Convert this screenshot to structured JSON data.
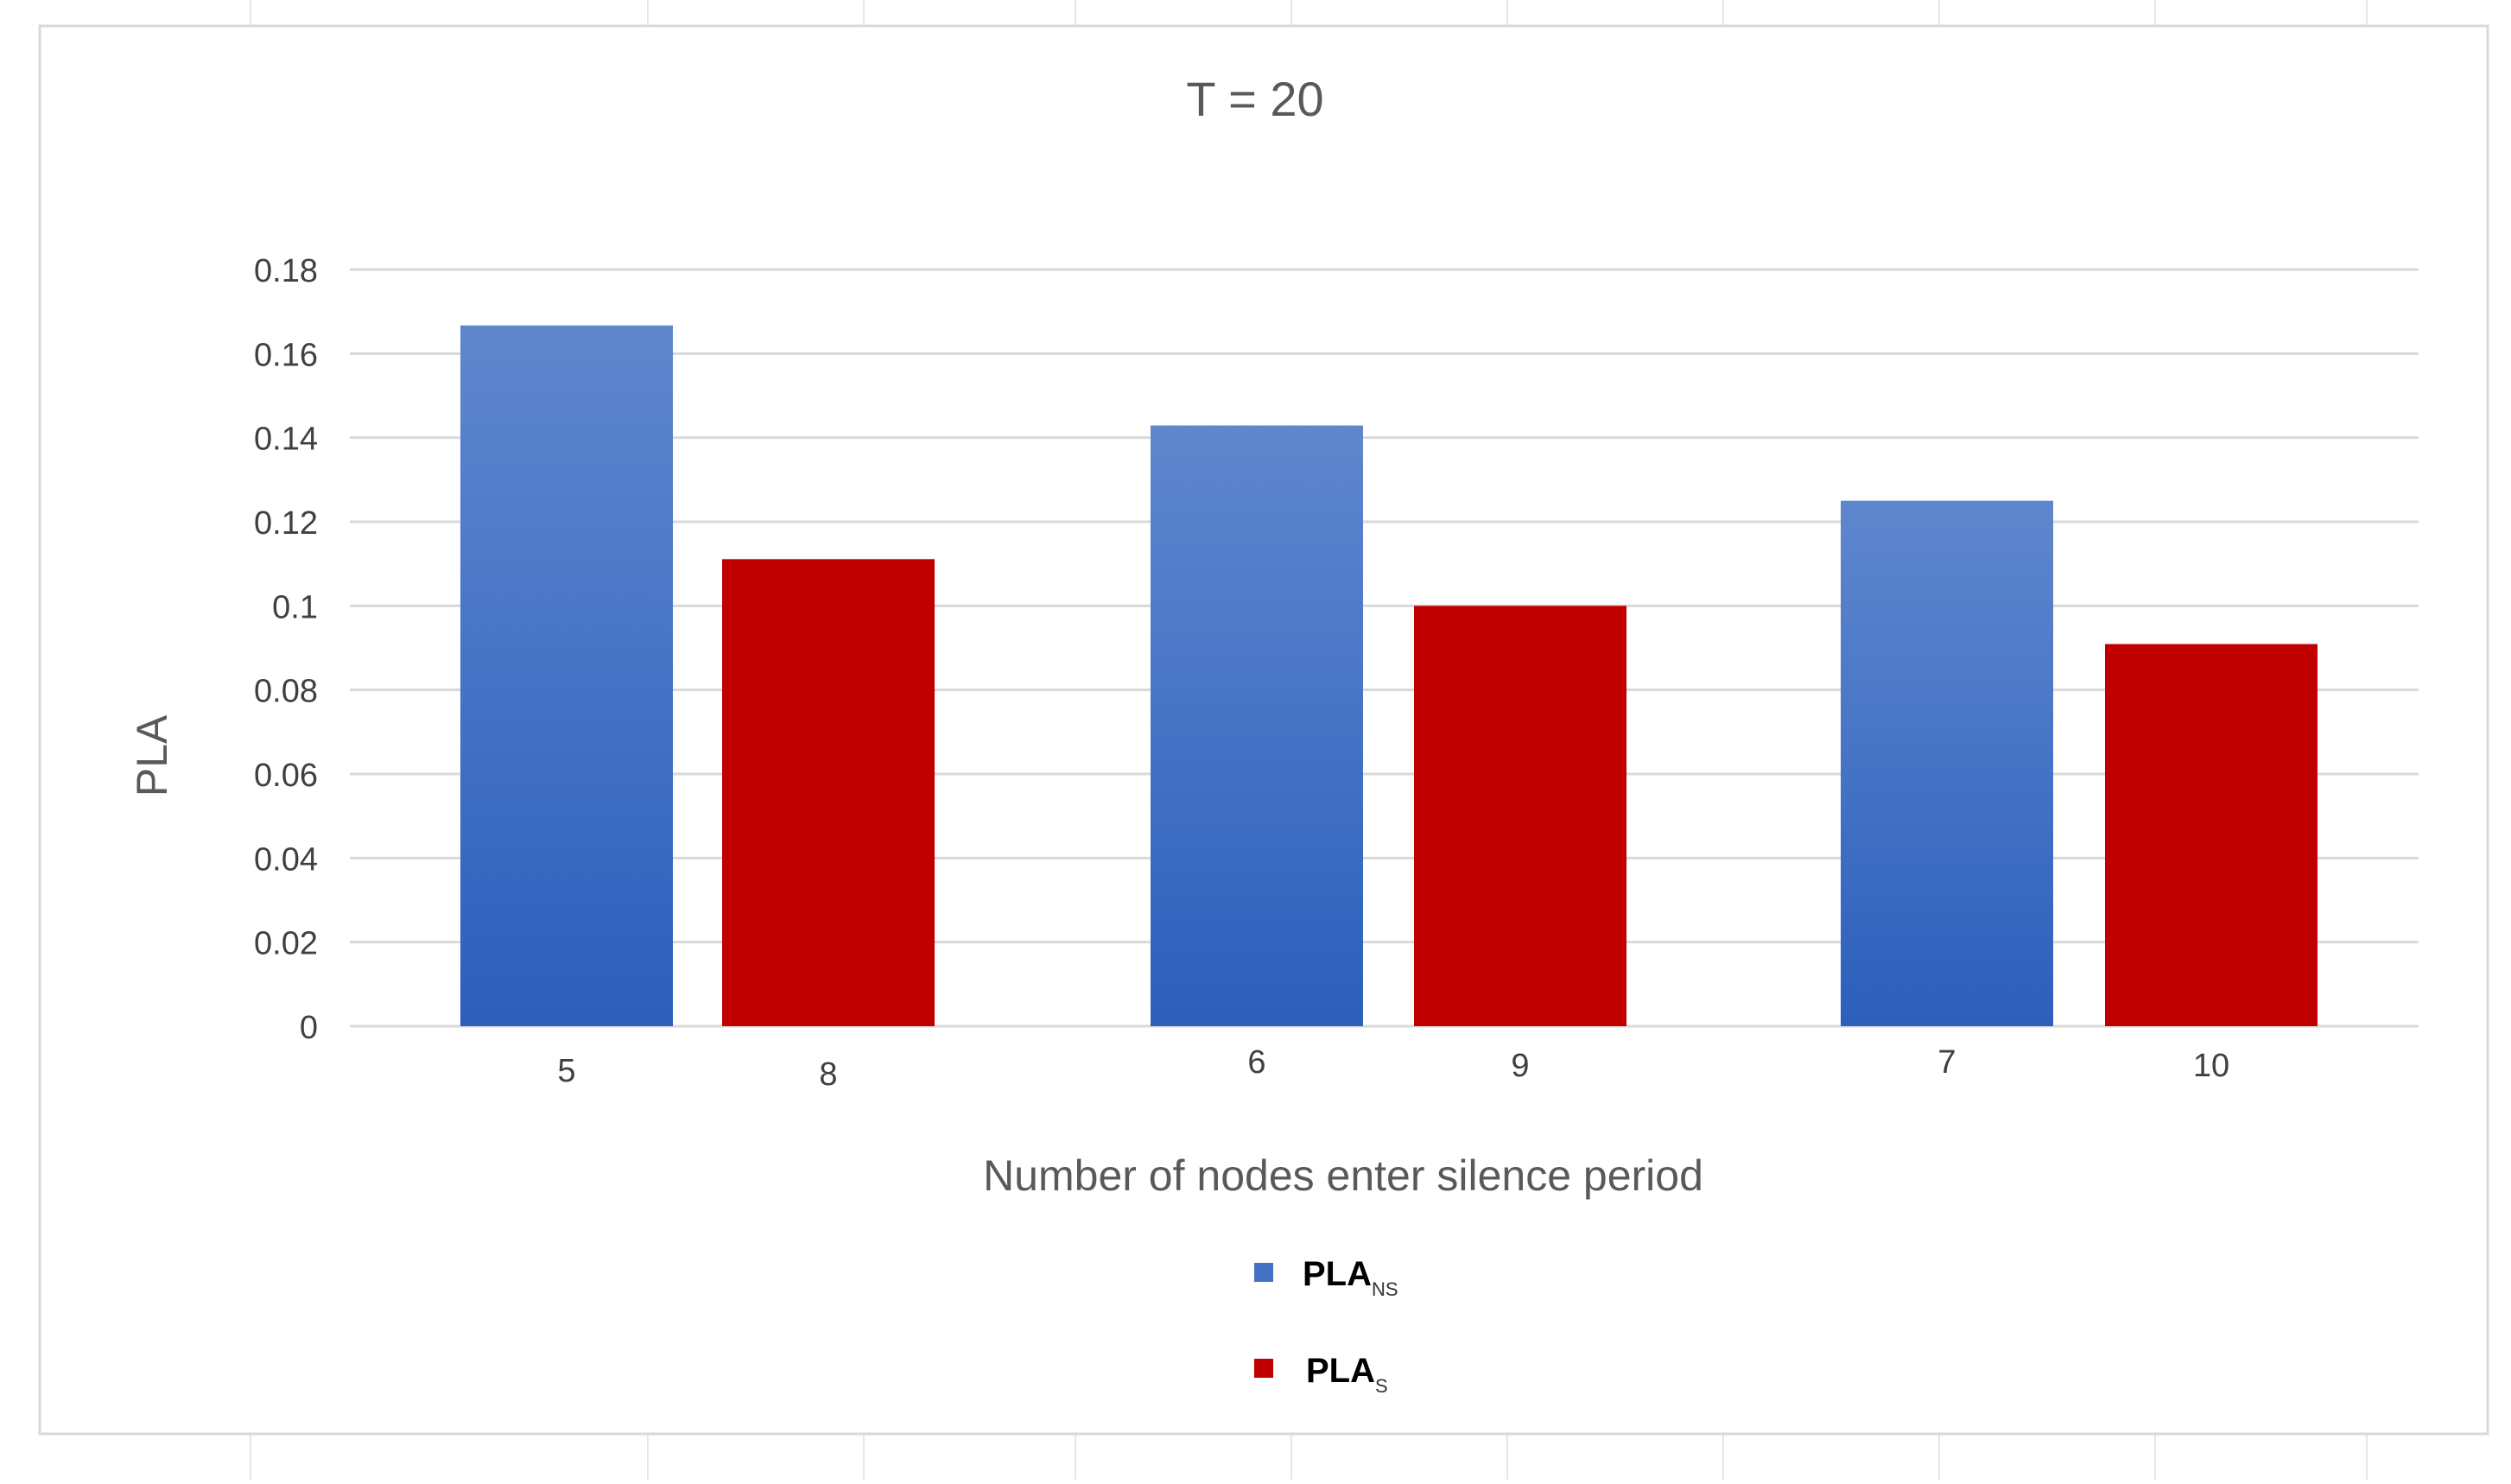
{
  "chart_data": {
    "type": "bar",
    "title": "T = 20",
    "xlabel": "Number of nodes enter silence period",
    "ylabel": "PLA",
    "ylim": [
      0,
      0.18
    ],
    "yticks": [
      "0",
      "0.02",
      "0.04",
      "0.06",
      "0.08",
      "0.1",
      "0.12",
      "0.14",
      "0.16",
      "0.18"
    ],
    "grid": true,
    "legend_position": "bottom-center",
    "bars": [
      {
        "label": "5",
        "value": 0.1667,
        "series": "PLA_NS"
      },
      {
        "label": "8",
        "value": 0.1111,
        "series": "PLA_S"
      },
      {
        "label": "6",
        "value": 0.1429,
        "series": "PLA_NS"
      },
      {
        "label": "9",
        "value": 0.1,
        "series": "PLA_S"
      },
      {
        "label": "7",
        "value": 0.125,
        "series": "PLA_NS"
      },
      {
        "label": "10",
        "value": 0.0909,
        "series": "PLA_S"
      }
    ],
    "series": [
      {
        "id": "PLA_NS",
        "name": "PLA",
        "subscript": "NS",
        "color": "#4472C4"
      },
      {
        "id": "PLA_S",
        "name": "PLA",
        "subscript": "S",
        "color": "#C00000"
      }
    ]
  }
}
